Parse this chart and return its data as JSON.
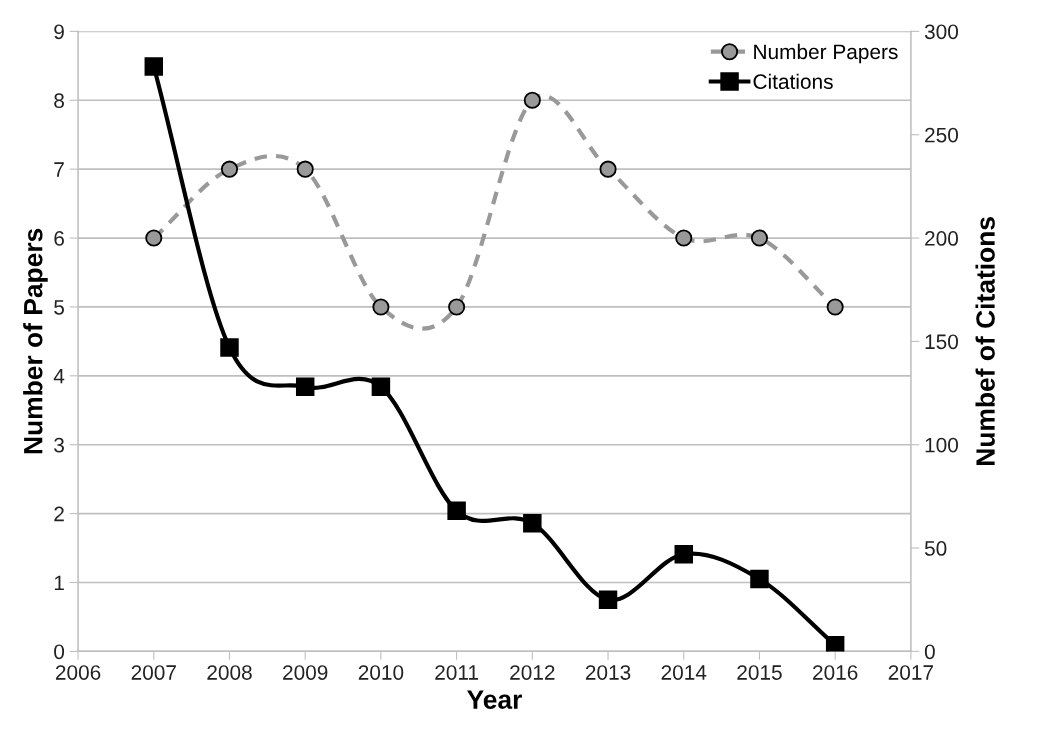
{
  "chart_data": {
    "type": "line",
    "xlabel": "Year",
    "ylabel": "Number of Papers",
    "y2label": "Numbef of Citations",
    "x": [
      2007,
      2008,
      2009,
      2010,
      2011,
      2012,
      2013,
      2014,
      2015,
      2016
    ],
    "series": [
      {
        "name": "Number Papers",
        "color": "#999999",
        "line_style": "dashed",
        "marker": "circle",
        "values": [
          6,
          7,
          7,
          5,
          5,
          8,
          7,
          6,
          6,
          5
        ]
      },
      {
        "name": "Citations",
        "color": "#000000",
        "line_style": "solid",
        "marker": "square",
        "axis": "y2",
        "values": [
          283,
          147,
          128,
          128,
          68,
          62,
          25,
          47,
          35,
          3
        ]
      }
    ],
    "xlim": [
      2006,
      2017
    ],
    "xticks": [
      2006,
      2007,
      2008,
      2009,
      2010,
      2011,
      2012,
      2013,
      2014,
      2015,
      2016,
      2017
    ],
    "ylim": [
      0,
      9
    ],
    "yticks": [
      0,
      1,
      2,
      3,
      4,
      5,
      6,
      7,
      8,
      9
    ],
    "y2lim": [
      0,
      300
    ],
    "y2ticks": [
      0,
      50,
      100,
      150,
      200,
      250,
      300
    ],
    "grid": "y",
    "legend": "top right"
  }
}
